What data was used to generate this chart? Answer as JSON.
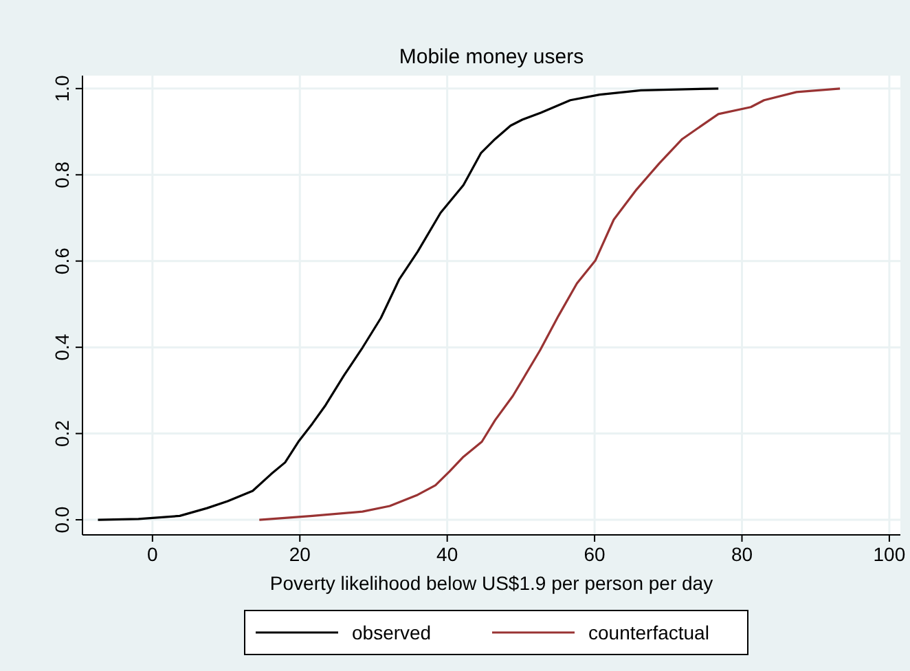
{
  "chart_data": {
    "type": "line",
    "title": "Mobile money users",
    "xlabel": "Poverty likelihood below US$1.9 per person per day",
    "xlim": [
      -9.5,
      101.5
    ],
    "ylim": [
      -0.035,
      1.03
    ],
    "xticks": [
      0,
      20,
      40,
      60,
      80,
      100
    ],
    "yticks": [
      {
        "value": 0,
        "label": "0.0"
      },
      {
        "value": 0.2,
        "label": "0.2"
      },
      {
        "value": 0.4,
        "label": "0.4"
      },
      {
        "value": 0.6,
        "label": "0.6"
      },
      {
        "value": 0.8,
        "label": "0.8"
      },
      {
        "value": 1,
        "label": "1.0"
      }
    ],
    "grid": true,
    "legend": "bottom",
    "line_style": "solid",
    "series": [
      {
        "name": "observed",
        "color": "#000000",
        "x": [
          -7.4,
          -1.9,
          3.7,
          7.4,
          10.2,
          13.6,
          16.1,
          18.0,
          19.8,
          21.7,
          23.5,
          26.0,
          28.5,
          31.0,
          33.5,
          36.0,
          39.1,
          42.2,
          44.6,
          46.5,
          48.6,
          50.2,
          52.7,
          56.7,
          60.7,
          66.3,
          76.8
        ],
        "values": [
          0,
          0.002,
          0.009,
          0.027,
          0.043,
          0.067,
          0.106,
          0.133,
          0.181,
          0.223,
          0.266,
          0.335,
          0.399,
          0.468,
          0.558,
          0.622,
          0.712,
          0.776,
          0.851,
          0.883,
          0.914,
          0.928,
          0.944,
          0.973,
          0.986,
          0.996,
          1.0
        ]
      },
      {
        "name": "counterfactual",
        "color": "#993333",
        "x": [
          14.5,
          21.7,
          28.5,
          32.2,
          36.0,
          38.4,
          40.3,
          42.2,
          44.7,
          46.5,
          48.9,
          52.6,
          55.1,
          57.6,
          60.1,
          62.6,
          65.7,
          68.8,
          71.9,
          76.8,
          81.2,
          83.0,
          87.4,
          93.3
        ],
        "values": [
          0,
          0.009,
          0.019,
          0.032,
          0.058,
          0.08,
          0.112,
          0.146,
          0.181,
          0.231,
          0.287,
          0.393,
          0.473,
          0.548,
          0.601,
          0.696,
          0.766,
          0.827,
          0.883,
          0.941,
          0.957,
          0.973,
          0.992,
          1.0
        ]
      }
    ]
  }
}
